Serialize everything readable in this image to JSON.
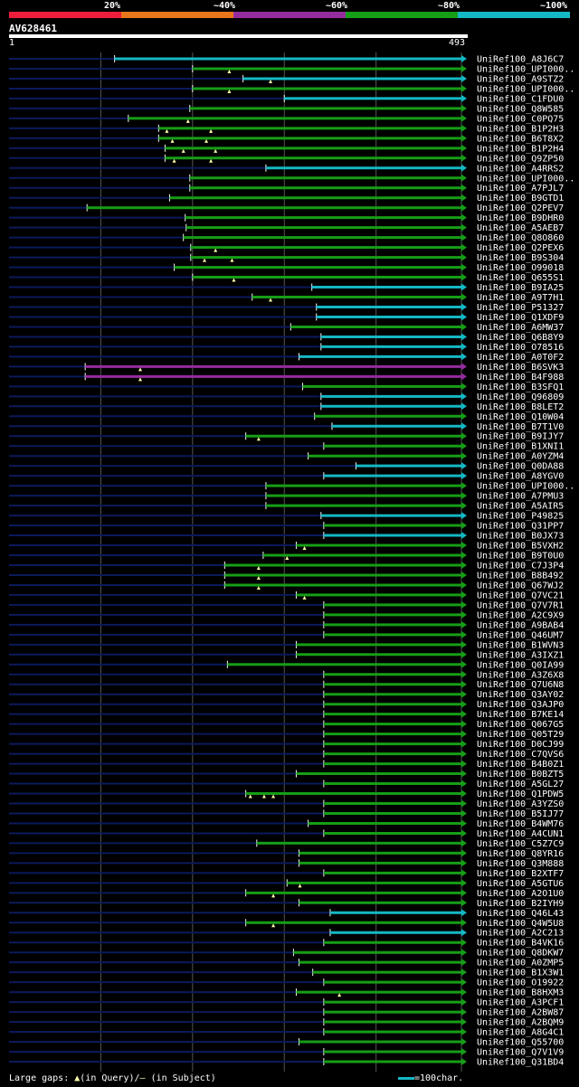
{
  "legend": [
    {
      "label": "20%",
      "color": "#ee1d3c"
    },
    {
      "label": "~40%",
      "color": "#e9761b"
    },
    {
      "label": "~60%",
      "color": "#952c9e"
    },
    {
      "label": "~80%",
      "color": "#169e17"
    },
    {
      "label": "~100%",
      "color": "#14b8c4"
    }
  ],
  "query": {
    "name": "AV628461",
    "start": "1",
    "end": "493",
    "length": 493
  },
  "footer": {
    "gaps_prefix": "Large gaps: ",
    "query_symbol": "▲",
    "query_note": "(in Query)/",
    "subject_symbol": "—",
    "subject_note": " (in Subject)"
  },
  "scale": {
    "label": "=100char."
  },
  "colors": {
    "cyan": "#14b8c4",
    "green": "#169e17",
    "purple": "#952c9e",
    "navy": "#0b1a5c",
    "gap": "#ffffaa",
    "grid": "#555555"
  },
  "chart_data": {
    "type": "alignment-overview",
    "query_length": 493,
    "hits": [
      {
        "name": "UniRef100_A8J6C7",
        "start": 115,
        "color": "cyan",
        "gaps": []
      },
      {
        "name": "UniRef100_UPI000..",
        "start": 200,
        "color": "green",
        "gaps": [
          240
        ]
      },
      {
        "name": "UniRef100_A9STZ2",
        "start": 255,
        "color": "cyan",
        "gaps": [
          285
        ]
      },
      {
        "name": "UniRef100_UPI000..",
        "start": 200,
        "color": "green",
        "gaps": [
          240
        ]
      },
      {
        "name": "UniRef100_C1FDU0",
        "start": 300,
        "color": "cyan",
        "gaps": []
      },
      {
        "name": "UniRef100_Q8W585",
        "start": 197,
        "color": "green",
        "gaps": []
      },
      {
        "name": "UniRef100_C0PQ75",
        "start": 130,
        "color": "green",
        "gaps": [
          195
        ]
      },
      {
        "name": "UniRef100_B1P2H3",
        "start": 163,
        "color": "green",
        "gaps": [
          172,
          220
        ]
      },
      {
        "name": "UniRef100_B6T8X2",
        "start": 163,
        "color": "green",
        "gaps": [
          178,
          215
        ]
      },
      {
        "name": "UniRef100_B1P2H4",
        "start": 170,
        "color": "green",
        "gaps": [
          190,
          225
        ]
      },
      {
        "name": "UniRef100_Q9ZP50",
        "start": 170,
        "color": "green",
        "gaps": [
          180,
          220
        ]
      },
      {
        "name": "UniRef100_A4RRS2",
        "start": 280,
        "color": "cyan",
        "gaps": []
      },
      {
        "name": "UniRef100_UPI000..",
        "start": 197,
        "color": "green",
        "gaps": []
      },
      {
        "name": "UniRef100_A7PJL7",
        "start": 197,
        "color": "green",
        "gaps": []
      },
      {
        "name": "UniRef100_B9GTD1",
        "start": 175,
        "color": "green",
        "gaps": []
      },
      {
        "name": "UniRef100_Q2PEV7",
        "start": 85,
        "color": "green",
        "gaps": []
      },
      {
        "name": "UniRef100_B9DHR0",
        "start": 192,
        "color": "green",
        "gaps": []
      },
      {
        "name": "UniRef100_A5AEB7",
        "start": 193,
        "color": "green",
        "gaps": []
      },
      {
        "name": "UniRef100_Q8O860",
        "start": 190,
        "color": "green",
        "gaps": []
      },
      {
        "name": "UniRef100_Q2PEX6",
        "start": 198,
        "color": "green",
        "gaps": [
          225
        ]
      },
      {
        "name": "UniRef100_B9S304",
        "start": 198,
        "color": "green",
        "gaps": [
          213,
          243
        ]
      },
      {
        "name": "UniRef100_O99018",
        "start": 180,
        "color": "green",
        "gaps": []
      },
      {
        "name": "UniRef100_Q655S1",
        "start": 200,
        "color": "green",
        "gaps": [
          245
        ]
      },
      {
        "name": "UniRef100_B9IA25",
        "start": 330,
        "color": "cyan",
        "gaps": []
      },
      {
        "name": "UniRef100_A9T7H1",
        "start": 265,
        "color": "green",
        "gaps": [
          285
        ]
      },
      {
        "name": "UniRef100_P51327",
        "start": 335,
        "color": "cyan",
        "gaps": []
      },
      {
        "name": "UniRef100_Q1XDF9",
        "start": 335,
        "color": "cyan",
        "gaps": []
      },
      {
        "name": "UniRef100_A6MW37",
        "start": 307,
        "color": "green",
        "gaps": []
      },
      {
        "name": "UniRef100_Q6B8Y9",
        "start": 340,
        "color": "cyan",
        "gaps": []
      },
      {
        "name": "UniRef100_O78516",
        "start": 340,
        "color": "cyan",
        "gaps": []
      },
      {
        "name": "UniRef100_A0T0F2",
        "start": 316,
        "color": "cyan",
        "gaps": []
      },
      {
        "name": "UniRef100_B6SVK3",
        "start": 83,
        "color": "purple",
        "gaps": [
          143
        ]
      },
      {
        "name": "UniRef100_B4F988",
        "start": 83,
        "color": "purple",
        "gaps": [
          143
        ]
      },
      {
        "name": "UniRef100_B3SFQ1",
        "start": 320,
        "color": "green",
        "gaps": []
      },
      {
        "name": "UniRef100_Q96809",
        "start": 340,
        "color": "cyan",
        "gaps": []
      },
      {
        "name": "UniRef100_B8LET2",
        "start": 340,
        "color": "cyan",
        "gaps": []
      },
      {
        "name": "UniRef100_Q10W04",
        "start": 333,
        "color": "green",
        "gaps": []
      },
      {
        "name": "UniRef100_B7T1V0",
        "start": 352,
        "color": "cyan",
        "gaps": []
      },
      {
        "name": "UniRef100_B9IJY7",
        "start": 258,
        "color": "green",
        "gaps": [
          272
        ]
      },
      {
        "name": "UniRef100_B1XNI1",
        "start": 343,
        "color": "green",
        "gaps": []
      },
      {
        "name": "UniRef100_A0YZM4",
        "start": 326,
        "color": "green",
        "gaps": []
      },
      {
        "name": "UniRef100_Q0DA88",
        "start": 378,
        "color": "cyan",
        "gaps": []
      },
      {
        "name": "UniRef100_A8YGV0",
        "start": 343,
        "color": "cyan",
        "gaps": []
      },
      {
        "name": "UniRef100_UPI000..",
        "start": 280,
        "color": "green",
        "gaps": []
      },
      {
        "name": "UniRef100_A7PMU3",
        "start": 280,
        "color": "green",
        "gaps": []
      },
      {
        "name": "UniRef100_A5AIR5",
        "start": 280,
        "color": "green",
        "gaps": []
      },
      {
        "name": "UniRef100_P49825",
        "start": 340,
        "color": "cyan",
        "gaps": []
      },
      {
        "name": "UniRef100_Q31PP7",
        "start": 343,
        "color": "green",
        "gaps": []
      },
      {
        "name": "UniRef100_B0JX73",
        "start": 343,
        "color": "cyan",
        "gaps": []
      },
      {
        "name": "UniRef100_B5VXH2",
        "start": 313,
        "color": "green",
        "gaps": [
          322
        ]
      },
      {
        "name": "UniRef100_B9T0U0",
        "start": 277,
        "color": "green",
        "gaps": [
          303
        ]
      },
      {
        "name": "UniRef100_C7J3P4",
        "start": 235,
        "color": "green",
        "gaps": [
          272
        ]
      },
      {
        "name": "UniRef100_B8B492",
        "start": 235,
        "color": "green",
        "gaps": [
          272
        ]
      },
      {
        "name": "UniRef100_Q67WJ2",
        "start": 235,
        "color": "green",
        "gaps": [
          272
        ]
      },
      {
        "name": "UniRef100_Q7VC21",
        "start": 313,
        "color": "green",
        "gaps": [
          322
        ]
      },
      {
        "name": "UniRef100_Q7V7R1",
        "start": 343,
        "color": "green",
        "gaps": []
      },
      {
        "name": "UniRef100_A2C9X9",
        "start": 343,
        "color": "green",
        "gaps": []
      },
      {
        "name": "UniRef100_A9BAB4",
        "start": 343,
        "color": "green",
        "gaps": []
      },
      {
        "name": "UniRef100_Q46UM7",
        "start": 343,
        "color": "green",
        "gaps": []
      },
      {
        "name": "UniRef100_B1WVN3",
        "start": 313,
        "color": "green",
        "gaps": []
      },
      {
        "name": "UniRef100_A3IXZ1",
        "start": 313,
        "color": "green",
        "gaps": []
      },
      {
        "name": "UniRef100_Q0IA99",
        "start": 238,
        "color": "green",
        "gaps": []
      },
      {
        "name": "UniRef100_A3Z6X8",
        "start": 343,
        "color": "green",
        "gaps": []
      },
      {
        "name": "UniRef100_Q7U6N8",
        "start": 343,
        "color": "green",
        "gaps": []
      },
      {
        "name": "UniRef100_Q3AY02",
        "start": 343,
        "color": "green",
        "gaps": []
      },
      {
        "name": "UniRef100_Q3AJP0",
        "start": 343,
        "color": "green",
        "gaps": []
      },
      {
        "name": "UniRef100_B7KE14",
        "start": 343,
        "color": "green",
        "gaps": []
      },
      {
        "name": "UniRef100_Q067G5",
        "start": 343,
        "color": "green",
        "gaps": []
      },
      {
        "name": "UniRef100_Q05T29",
        "start": 343,
        "color": "green",
        "gaps": []
      },
      {
        "name": "UniRef100_D0CJ99",
        "start": 343,
        "color": "green",
        "gaps": []
      },
      {
        "name": "UniRef100_C7QVS6",
        "start": 343,
        "color": "green",
        "gaps": []
      },
      {
        "name": "UniRef100_B4B0Z1",
        "start": 343,
        "color": "green",
        "gaps": []
      },
      {
        "name": "UniRef100_B0BZT5",
        "start": 313,
        "color": "green",
        "gaps": []
      },
      {
        "name": "UniRef100_A5GL27",
        "start": 343,
        "color": "green",
        "gaps": []
      },
      {
        "name": "UniRef100_Q1PDW5",
        "start": 258,
        "color": "green",
        "gaps": [
          263,
          278,
          288
        ]
      },
      {
        "name": "UniRef100_A3YZS0",
        "start": 343,
        "color": "green",
        "gaps": []
      },
      {
        "name": "UniRef100_B5IJ77",
        "start": 343,
        "color": "green",
        "gaps": []
      },
      {
        "name": "UniRef100_B4WM76",
        "start": 326,
        "color": "green",
        "gaps": []
      },
      {
        "name": "UniRef100_A4CUN1",
        "start": 343,
        "color": "green",
        "gaps": []
      },
      {
        "name": "UniRef100_C5Z7C9",
        "start": 270,
        "color": "green",
        "gaps": []
      },
      {
        "name": "UniRef100_Q8YR16",
        "start": 316,
        "color": "green",
        "gaps": []
      },
      {
        "name": "UniRef100_Q3M888",
        "start": 316,
        "color": "green",
        "gaps": []
      },
      {
        "name": "UniRef100_B2XTF7",
        "start": 343,
        "color": "green",
        "gaps": []
      },
      {
        "name": "UniRef100_A5GTU6",
        "start": 303,
        "color": "green",
        "gaps": [
          317
        ]
      },
      {
        "name": "UniRef100_A2O1U0",
        "start": 258,
        "color": "green",
        "gaps": [
          288
        ]
      },
      {
        "name": "UniRef100_B2IYH9",
        "start": 316,
        "color": "green",
        "gaps": []
      },
      {
        "name": "UniRef100_Q46L43",
        "start": 350,
        "color": "cyan",
        "gaps": []
      },
      {
        "name": "UniRef100_Q4W5U8",
        "start": 258,
        "color": "green",
        "gaps": [
          288
        ]
      },
      {
        "name": "UniRef100_A2C213",
        "start": 350,
        "color": "cyan",
        "gaps": []
      },
      {
        "name": "UniRef100_B4VK16",
        "start": 343,
        "color": "green",
        "gaps": []
      },
      {
        "name": "UniRef100_Q8DKW7",
        "start": 310,
        "color": "green",
        "gaps": []
      },
      {
        "name": "UniRef100_A0ZMP5",
        "start": 316,
        "color": "green",
        "gaps": []
      },
      {
        "name": "UniRef100_B1X3W1",
        "start": 331,
        "color": "green",
        "gaps": []
      },
      {
        "name": "UniRef100_O19922",
        "start": 343,
        "color": "green",
        "gaps": []
      },
      {
        "name": "UniRef100_B8HXM3",
        "start": 313,
        "color": "green",
        "gaps": [
          360
        ]
      },
      {
        "name": "UniRef100_A3PCF1",
        "start": 343,
        "color": "green",
        "gaps": []
      },
      {
        "name": "UniRef100_A2BW87",
        "start": 343,
        "color": "green",
        "gaps": []
      },
      {
        "name": "UniRef100_A2BQM9",
        "start": 343,
        "color": "green",
        "gaps": []
      },
      {
        "name": "UniRef100_A8G4C1",
        "start": 343,
        "color": "green",
        "gaps": []
      },
      {
        "name": "UniRef100_Q55700",
        "start": 316,
        "color": "green",
        "gaps": []
      },
      {
        "name": "UniRef100_Q7V1V9",
        "start": 343,
        "color": "green",
        "gaps": []
      },
      {
        "name": "UniRef100_Q31BD4",
        "start": 343,
        "color": "green",
        "gaps": []
      }
    ]
  }
}
